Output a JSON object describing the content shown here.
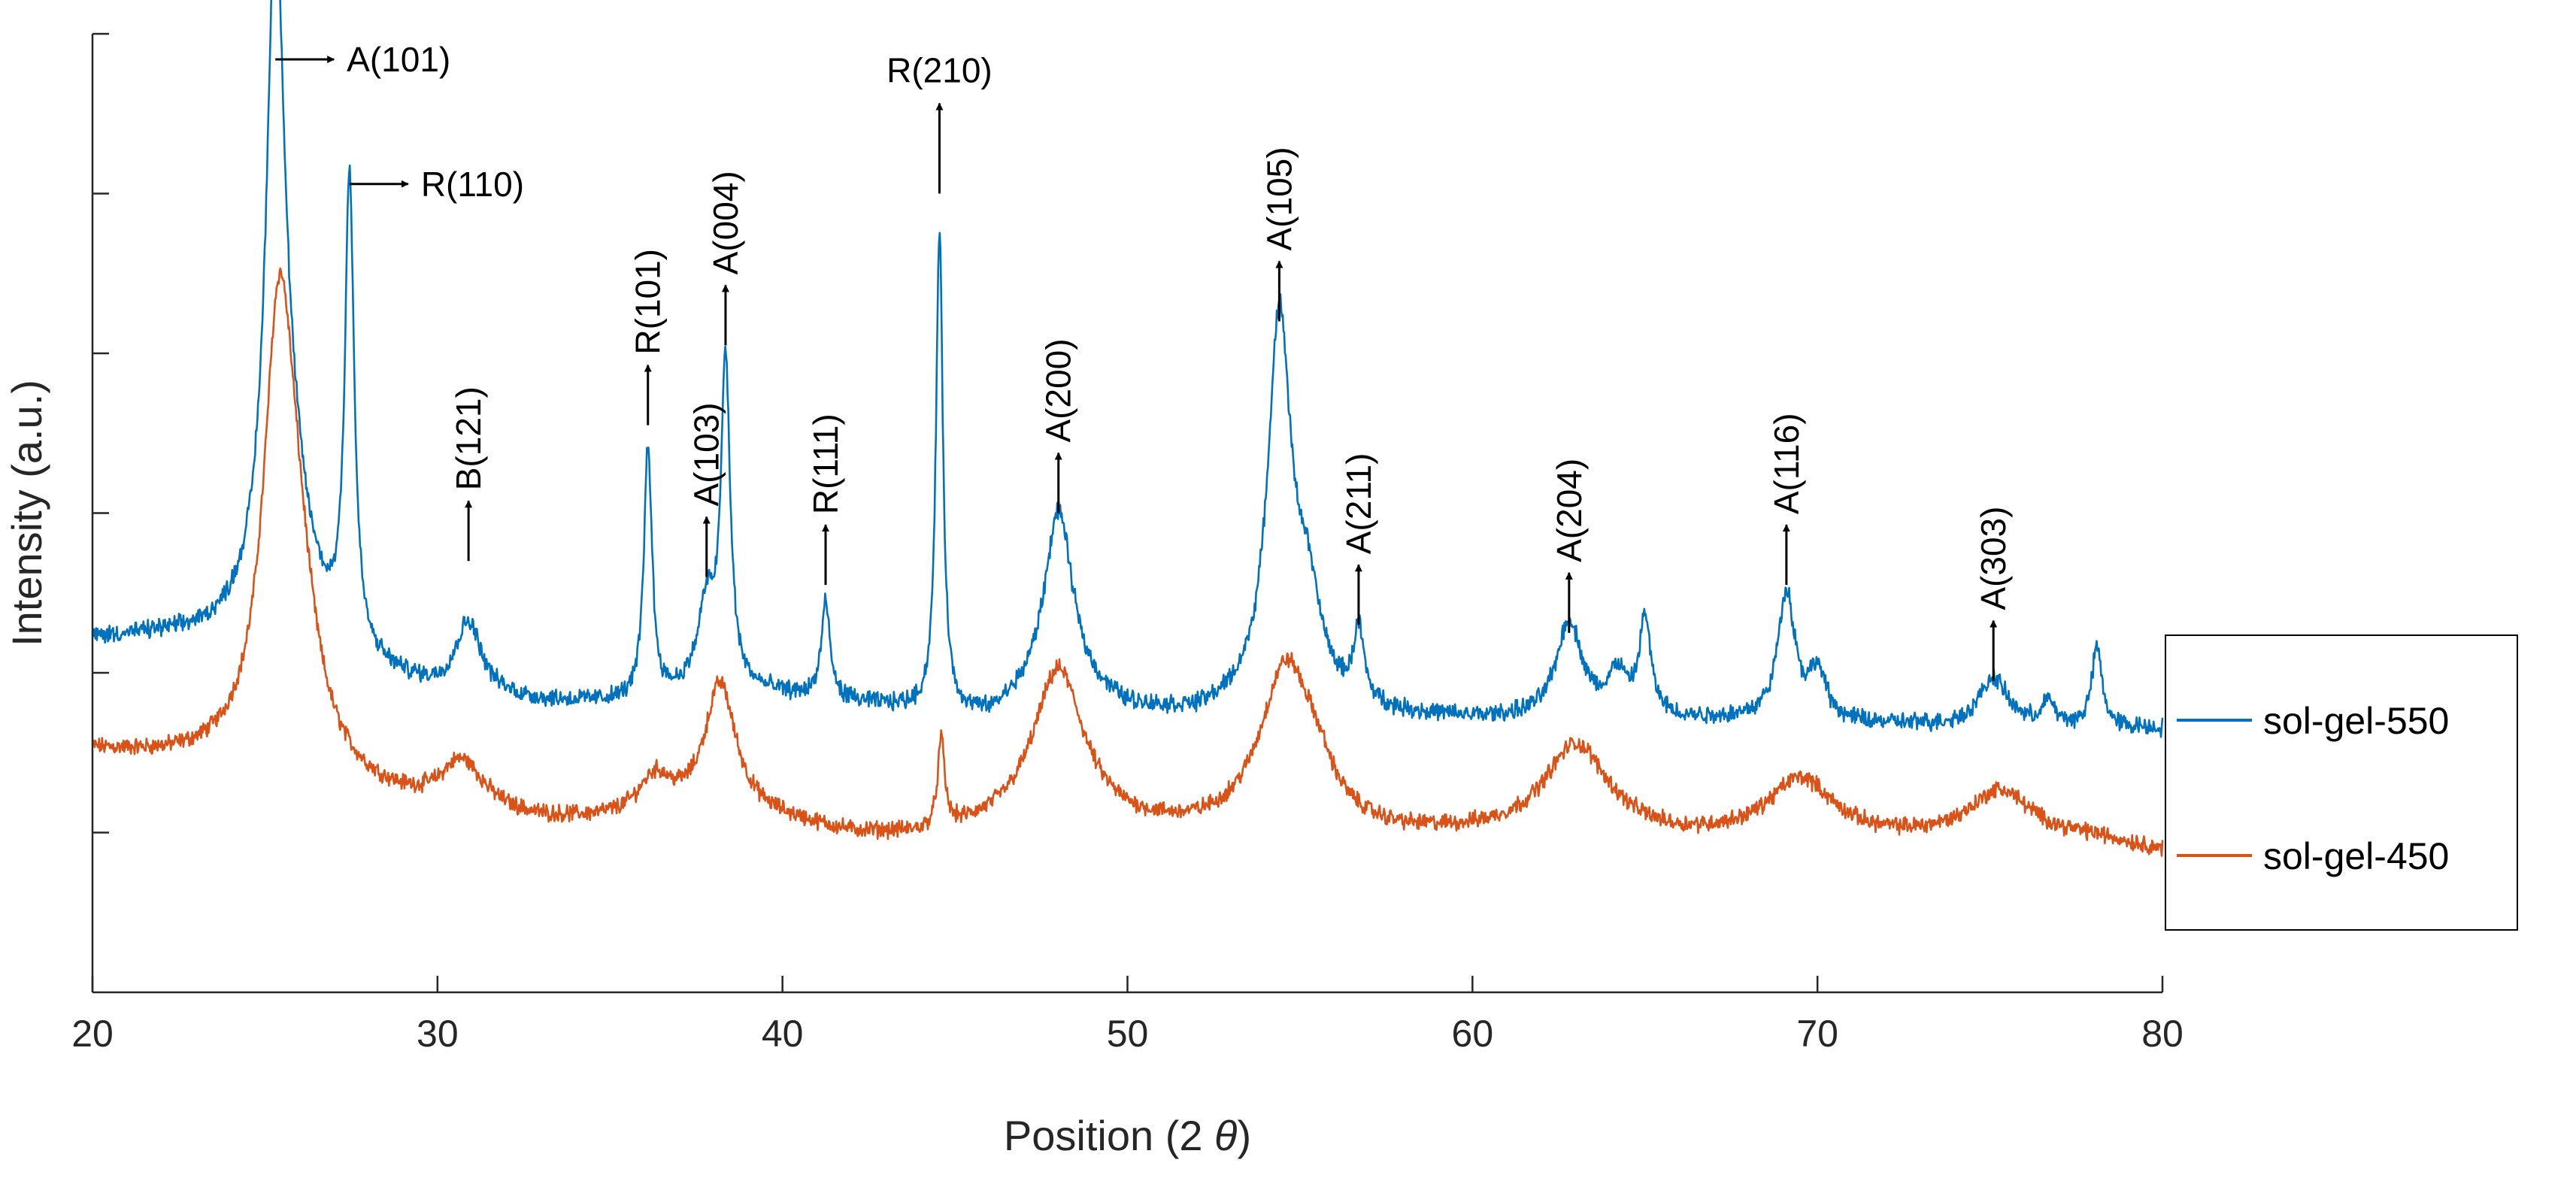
{
  "chart_data": {
    "type": "line",
    "title": "",
    "xlabel": "Position (2 θ)",
    "xlabel_parts": {
      "prefix": "Position (2 ",
      "symbol": "θ",
      "suffix": ")"
    },
    "ylabel": "Intensity (a.u.)",
    "xlim": [
      20,
      80
    ],
    "ylim": [
      0,
      6
    ],
    "xticks": [
      20,
      30,
      40,
      50,
      60,
      70,
      80
    ],
    "ytick_count": 6,
    "legend_position": "right",
    "grid": false,
    "series": [
      {
        "name": "sol-gel-550",
        "color": "#0072BD",
        "baseline_points": [
          [
            20,
            2.2
          ],
          [
            22,
            2.2
          ],
          [
            24,
            2.15
          ],
          [
            26,
            2.05
          ],
          [
            28,
            1.95
          ],
          [
            30,
            1.85
          ],
          [
            33,
            1.8
          ],
          [
            36,
            1.8
          ],
          [
            38,
            1.9
          ],
          [
            40,
            1.85
          ],
          [
            42,
            1.8
          ],
          [
            44,
            1.75
          ],
          [
            46,
            1.7
          ],
          [
            48,
            1.9
          ],
          [
            50,
            1.75
          ],
          [
            52,
            1.72
          ],
          [
            54,
            1.8
          ],
          [
            56,
            1.75
          ],
          [
            58,
            1.72
          ],
          [
            60,
            1.7
          ],
          [
            62,
            1.7
          ],
          [
            64,
            1.72
          ],
          [
            66,
            1.7
          ],
          [
            68,
            1.7
          ],
          [
            70,
            1.68
          ],
          [
            72,
            1.67
          ],
          [
            74,
            1.66
          ],
          [
            76,
            1.66
          ],
          [
            78,
            1.65
          ],
          [
            80,
            1.65
          ]
        ],
        "peaks": [
          {
            "pos": 25.3,
            "height": 3.75,
            "width": 0.3
          },
          {
            "pos": 25.6,
            "height": 1.1,
            "width": 0.8
          },
          {
            "pos": 27.45,
            "height": 2.95,
            "width": 0.16
          },
          {
            "pos": 30.9,
            "height": 0.45,
            "width": 0.45
          },
          {
            "pos": 36.1,
            "height": 1.6,
            "width": 0.14
          },
          {
            "pos": 37.8,
            "height": 0.5,
            "width": 0.3
          },
          {
            "pos": 38.35,
            "height": 2.0,
            "width": 0.16
          },
          {
            "pos": 41.25,
            "height": 0.6,
            "width": 0.15
          },
          {
            "pos": 44.55,
            "height": 3.0,
            "width": 0.12
          },
          {
            "pos": 48.0,
            "height": 1.1,
            "width": 0.5
          },
          {
            "pos": 54.4,
            "height": 2.35,
            "width": 0.4
          },
          {
            "pos": 55.2,
            "height": 0.6,
            "width": 0.5
          },
          {
            "pos": 56.7,
            "height": 0.45,
            "width": 0.18
          },
          {
            "pos": 62.8,
            "height": 0.6,
            "width": 0.45
          },
          {
            "pos": 64.2,
            "height": 0.25,
            "width": 0.3
          },
          {
            "pos": 65.0,
            "height": 0.6,
            "width": 0.2
          },
          {
            "pos": 69.1,
            "height": 0.8,
            "width": 0.3
          },
          {
            "pos": 70.0,
            "height": 0.3,
            "width": 0.3
          },
          {
            "pos": 75.1,
            "height": 0.3,
            "width": 0.5
          },
          {
            "pos": 76.7,
            "height": 0.15,
            "width": 0.2
          },
          {
            "pos": 78.1,
            "height": 0.5,
            "width": 0.18
          }
        ]
      },
      {
        "name": "sol-gel-450",
        "color": "#D95319",
        "baseline_points": [
          [
            20,
            1.5
          ],
          [
            22,
            1.45
          ],
          [
            24,
            1.4
          ],
          [
            27,
            1.25
          ],
          [
            30,
            1.1
          ],
          [
            33,
            1.05
          ],
          [
            36,
            1.05
          ],
          [
            38,
            1.1
          ],
          [
            40,
            1.05
          ],
          [
            42,
            0.97
          ],
          [
            44,
            0.95
          ],
          [
            46,
            1.0
          ],
          [
            48,
            1.05
          ],
          [
            50,
            1.0
          ],
          [
            52,
            0.98
          ],
          [
            54,
            1.0
          ],
          [
            56,
            0.97
          ],
          [
            58,
            0.96
          ],
          [
            60,
            0.97
          ],
          [
            62,
            0.98
          ],
          [
            64,
            0.98
          ],
          [
            66,
            0.95
          ],
          [
            68,
            0.96
          ],
          [
            70,
            0.97
          ],
          [
            72,
            0.95
          ],
          [
            74,
            0.95
          ],
          [
            76,
            0.95
          ],
          [
            78,
            0.95
          ],
          [
            80,
            0.88
          ]
        ],
        "peaks": [
          {
            "pos": 25.4,
            "height": 2.55,
            "width": 0.55
          },
          {
            "pos": 25.9,
            "height": 0.9,
            "width": 0.7
          },
          {
            "pos": 30.7,
            "height": 0.32,
            "width": 0.8
          },
          {
            "pos": 36.3,
            "height": 0.25,
            "width": 0.6
          },
          {
            "pos": 38.2,
            "height": 0.8,
            "width": 0.55
          },
          {
            "pos": 44.6,
            "height": 0.55,
            "width": 0.12
          },
          {
            "pos": 48.0,
            "height": 0.95,
            "width": 0.9
          },
          {
            "pos": 54.6,
            "height": 1.0,
            "width": 0.9
          },
          {
            "pos": 55.5,
            "height": 0.2,
            "width": 0.6
          },
          {
            "pos": 63.0,
            "height": 0.55,
            "width": 1.1
          },
          {
            "pos": 69.5,
            "height": 0.35,
            "width": 1.1
          },
          {
            "pos": 75.3,
            "height": 0.3,
            "width": 1.1
          }
        ]
      }
    ],
    "annotations": [
      {
        "text": "A(101)",
        "style": "horizontal",
        "x": 25.3,
        "y": 5.84
      },
      {
        "text": "R(110)",
        "style": "horizontal",
        "x": 27.45,
        "y": 5.06
      },
      {
        "text": "B(121)",
        "style": "vertical",
        "x": 30.9,
        "y": 2.7
      },
      {
        "text": "R(101)",
        "style": "vertical",
        "x": 36.1,
        "y": 3.55
      },
      {
        "text": "A(103)",
        "style": "vertical",
        "x": 37.8,
        "y": 2.6
      },
      {
        "text": "A(004)",
        "style": "vertical",
        "x": 38.35,
        "y": 4.05
      },
      {
        "text": "R(111)",
        "style": "vertical",
        "x": 41.25,
        "y": 2.55
      },
      {
        "text": "R(210)",
        "style": "vertical",
        "x": 44.55,
        "y": 5.0
      },
      {
        "text": "A(200)",
        "style": "vertical",
        "x": 48.0,
        "y": 3.0
      },
      {
        "text": "A(105)",
        "style": "vertical",
        "x": 54.4,
        "y": 4.2
      },
      {
        "text": "A(211)",
        "style": "vertical",
        "x": 56.7,
        "y": 2.3
      },
      {
        "text": "A(204)",
        "style": "vertical",
        "x": 62.8,
        "y": 2.25
      },
      {
        "text": "A(116)",
        "style": "vertical",
        "x": 69.1,
        "y": 2.55
      },
      {
        "text": "A(303)",
        "style": "vertical",
        "x": 75.1,
        "y": 1.95
      }
    ]
  }
}
